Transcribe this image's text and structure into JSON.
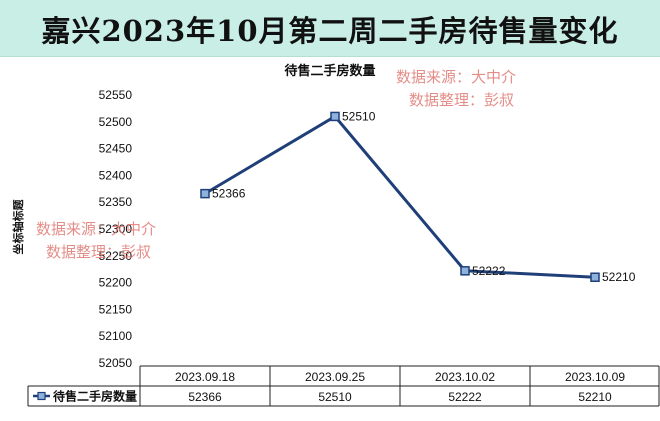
{
  "banner": {
    "title": "嘉兴2023年10月第二周二手房待售量变化"
  },
  "watermark": {
    "line1": "数据来源：大中介",
    "line2": "数据整理：彭叔",
    "color": "#e07a74"
  },
  "chart_data": {
    "type": "line",
    "title": "待售二手房数量",
    "ylabel": "坐标轴标题",
    "xlabel": "",
    "categories": [
      "2023.09.18",
      "2023.09.25",
      "2023.10.02",
      "2023.10.09"
    ],
    "series": [
      {
        "name": "待售二手房数量",
        "values": [
          52366,
          52510,
          52222,
          52210
        ],
        "color": "#1f3f78"
      }
    ],
    "ylim": [
      52050,
      52550
    ],
    "yticks": [
      52050,
      52100,
      52150,
      52200,
      52250,
      52300,
      52350,
      52400,
      52450,
      52500,
      52550
    ],
    "grid": false,
    "data_table": true,
    "data_labels": true
  }
}
